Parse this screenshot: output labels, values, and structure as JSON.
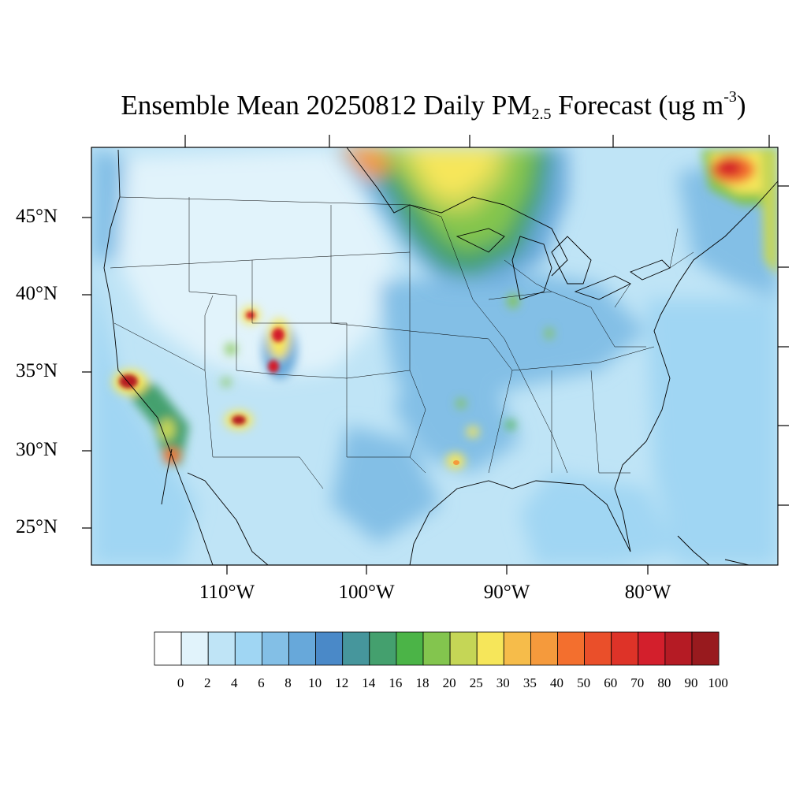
{
  "title": {
    "prefix": "Ensemble Mean 20250812 Daily PM",
    "sub": "2.5",
    "middle": " Forecast (ug m",
    "sup": "-3",
    "suffix": ")"
  },
  "map": {
    "region": "CONUS",
    "lat_labels": [
      "45°N",
      "40°N",
      "35°N",
      "30°N",
      "25°N"
    ],
    "lon_labels": [
      "110°W",
      "100°W",
      "90°W",
      "80°W"
    ],
    "background_color": "#c3e4f6"
  },
  "colorbar": {
    "levels": [
      "0",
      "2",
      "4",
      "6",
      "8",
      "10",
      "12",
      "14",
      "16",
      "18",
      "20",
      "25",
      "30",
      "35",
      "40",
      "50",
      "60",
      "70",
      "80",
      "90",
      "100"
    ],
    "colors": [
      "#ffffff",
      "#e1f3fb",
      "#bfe4f6",
      "#a0d6f3",
      "#83bfe6",
      "#67a8da",
      "#4a89c8",
      "#46969c",
      "#44a06e",
      "#4bb447",
      "#83c54e",
      "#c5d656",
      "#f6e65a",
      "#f6bc4a",
      "#f59a3c",
      "#f36f2e",
      "#ea4f2a",
      "#de3328",
      "#d31f2c",
      "#b51b24",
      "#981a1e"
    ]
  },
  "plumes": [
    {
      "name": "Southern Canada smoke",
      "color_level": "25"
    },
    {
      "name": "Quebec smoke",
      "color_level": "100"
    },
    {
      "name": "Southern California fire",
      "color_level": "100"
    },
    {
      "name": "Colorado fire",
      "color_level": "100"
    },
    {
      "name": "Utah fire",
      "color_level": "100"
    },
    {
      "name": "Arizona fire",
      "color_level": "100"
    },
    {
      "name": "Baja fire",
      "color_level": "70"
    },
    {
      "name": "Louisiana fire",
      "color_level": "40"
    }
  ]
}
